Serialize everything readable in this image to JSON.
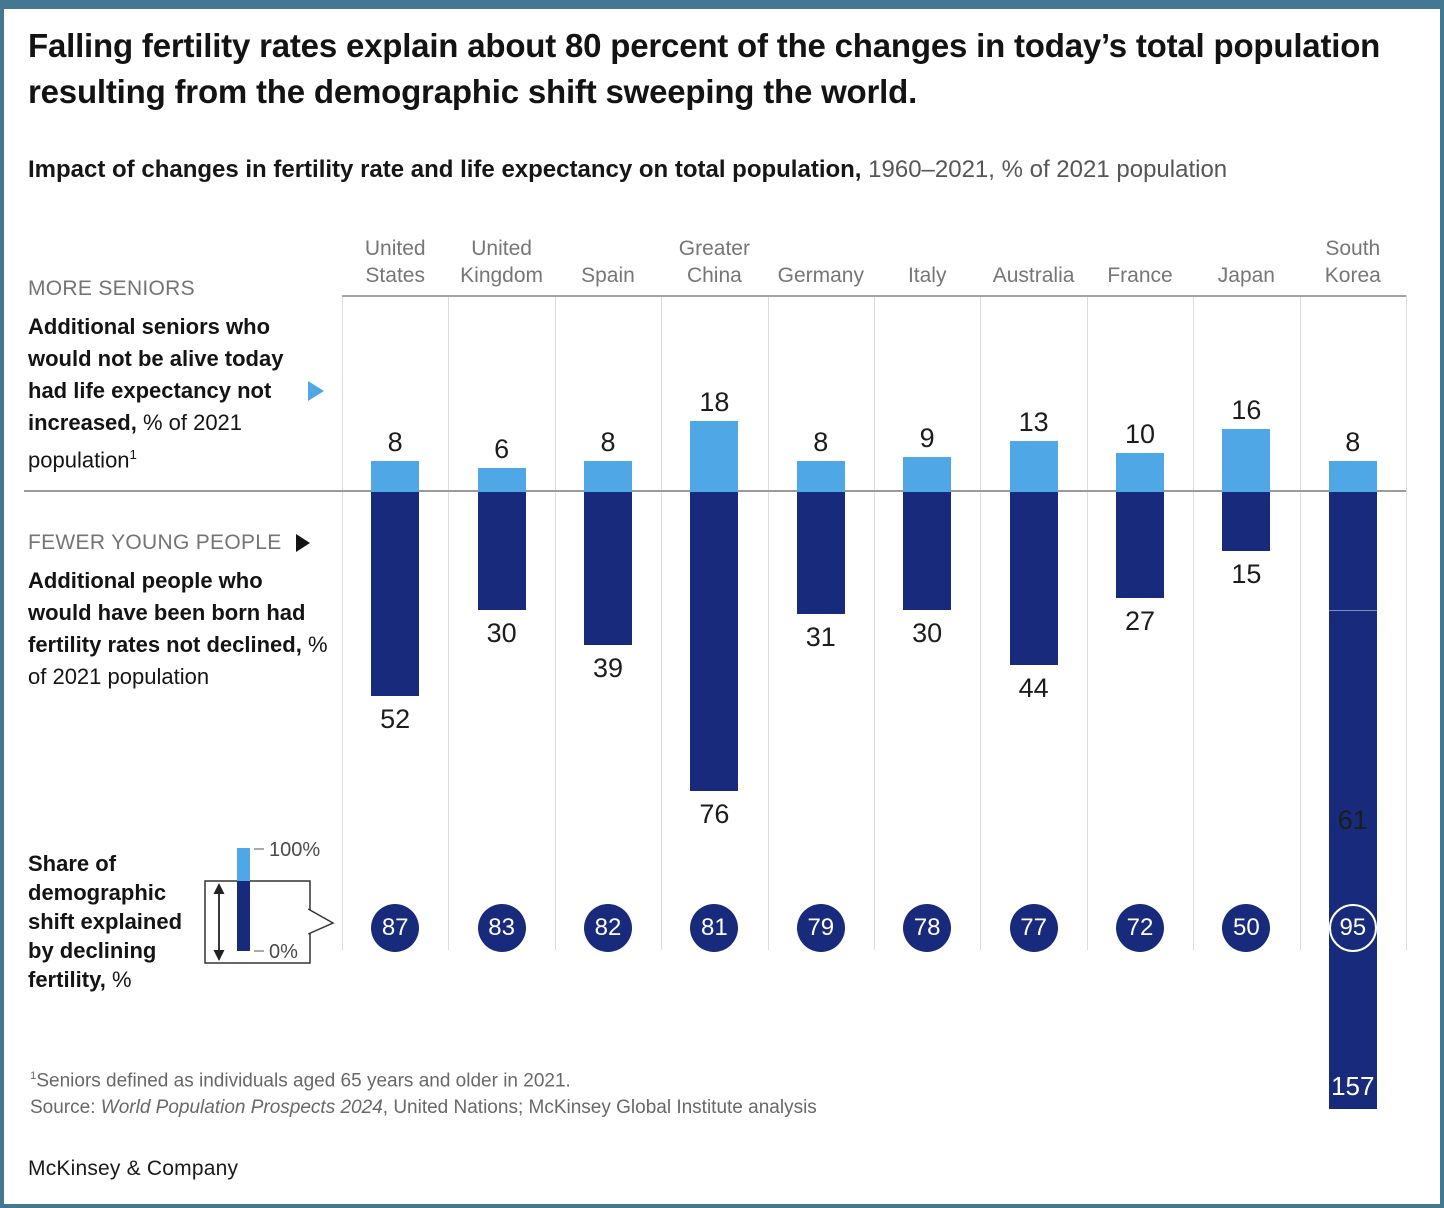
{
  "title": "Falling fertility rates explain about 80 percent of the changes in today’s total population resulting from the demographic shift sweeping the world.",
  "subtitle": {
    "bold": "Impact of changes in fertility rate and life expectancy on total population,",
    "rest": " 1960–2021, % of 2021 population"
  },
  "left_labels": {
    "more_seniors": {
      "heading": "MORE SENIORS",
      "bold": "Additional seniors who would not be alive today had life expectancy not increased,",
      "rest": " % of 2021 population",
      "sup": "1"
    },
    "fewer_young": {
      "heading": "FEWER YOUNG PEOPLE",
      "bold": "Additional people who would have been born had fertility rates not declined,",
      "rest": " % of 2021 population"
    },
    "share": {
      "bold": "Share of demographic shift explained by declining fertility,",
      "rest": " %"
    }
  },
  "legend": {
    "max": "100%",
    "min": "0%"
  },
  "chart_data": {
    "type": "bar",
    "categories": [
      "United States",
      "United Kingdom",
      "Spain",
      "Greater China",
      "Germany",
      "Italy",
      "Australia",
      "France",
      "Japan",
      "South Korea"
    ],
    "series": [
      {
        "name": "More seniors: additional seniors who would not be alive today had life expectancy not increased, % of 2021 population",
        "color": "#4FA7E6",
        "direction": "up",
        "values": [
          8,
          6,
          8,
          18,
          8,
          9,
          13,
          10,
          16,
          8
        ]
      },
      {
        "name": "Fewer young people: additional people who would have been born had fertility rates not declined, % of 2021 population",
        "color": "#182A7B",
        "direction": "down",
        "values": [
          52,
          30,
          39,
          76,
          31,
          30,
          44,
          27,
          15,
          157
        ]
      }
    ],
    "share_circles": [
      87,
      83,
      82,
      81,
      79,
      78,
      77,
      72,
      50,
      95
    ],
    "annotations": {
      "south_korea_inner_label": "61",
      "south_korea_total_label": "157"
    },
    "unit": "% of 2021 population",
    "baseline": 0,
    "grid": "vertical-column-separators",
    "legend_position": "bottom-left"
  },
  "footnotes": {
    "sup1": "1",
    "note1": "Seniors defined as individuals aged 65 years and older in 2021.",
    "source_prefix": "Source: ",
    "source_italic": "World Population Prospects 2024",
    "source_rest": ", United Nations; McKinsey Global Institute analysis"
  },
  "logo": "McKinsey & Company",
  "colors": {
    "light_blue": "#4FA7E6",
    "navy": "#182A7B",
    "frame_border": "#447790"
  }
}
